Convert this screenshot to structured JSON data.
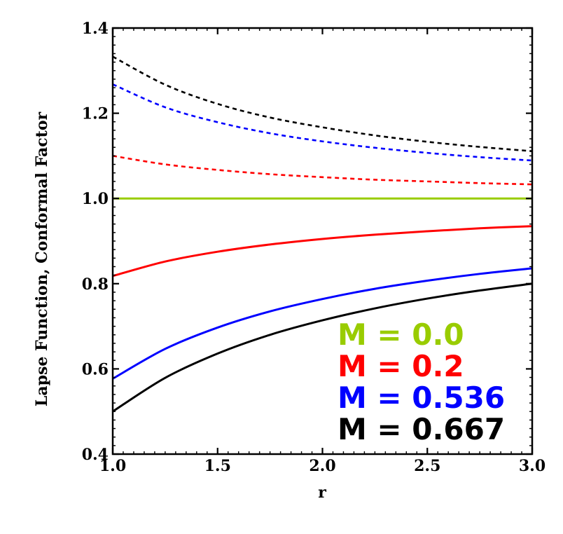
{
  "chart_data": {
    "type": "line",
    "title": "",
    "xlabel": "r",
    "ylabel": "Lapse Function, Conformal Factor",
    "xlim": [
      1.0,
      3.0
    ],
    "ylim": [
      0.4,
      1.4
    ],
    "x_ticks": [
      "1.0",
      "1.5",
      "2.0",
      "2.5",
      "3.0"
    ],
    "y_ticks": [
      "0.4",
      "0.6",
      "0.8",
      "1.0",
      "1.2",
      "1.4"
    ],
    "x": [
      1.0,
      1.25,
      1.5,
      1.75,
      2.0,
      2.25,
      2.5,
      2.75,
      3.0
    ],
    "series": [
      {
        "name": "Conformal Factor, M = 0.667",
        "color": "#000000",
        "style": "dashed",
        "values": [
          1.333,
          1.267,
          1.222,
          1.19,
          1.167,
          1.148,
          1.133,
          1.121,
          1.111
        ]
      },
      {
        "name": "Conformal Factor, M = 0.536",
        "color": "#0000ff",
        "style": "dashed",
        "values": [
          1.268,
          1.214,
          1.179,
          1.153,
          1.134,
          1.119,
          1.107,
          1.097,
          1.089
        ]
      },
      {
        "name": "Conformal Factor, M = 0.2",
        "color": "#ff0000",
        "style": "dashed",
        "values": [
          1.1,
          1.08,
          1.067,
          1.057,
          1.05,
          1.044,
          1.04,
          1.036,
          1.033
        ]
      },
      {
        "name": "M = 0.0",
        "color": "#99cc00",
        "style": "solid",
        "values": [
          1.0,
          1.0,
          1.0,
          1.0,
          1.0,
          1.0,
          1.0,
          1.0,
          1.0
        ]
      },
      {
        "name": "Lapse Function, M = 0.2",
        "color": "#ff0000",
        "style": "solid",
        "values": [
          0.818,
          0.852,
          0.875,
          0.892,
          0.905,
          0.915,
          0.923,
          0.93,
          0.935
        ]
      },
      {
        "name": "Lapse Function, M = 0.536",
        "color": "#0000ff",
        "style": "solid",
        "values": [
          0.577,
          0.647,
          0.697,
          0.735,
          0.764,
          0.788,
          0.807,
          0.823,
          0.836
        ]
      },
      {
        "name": "Lapse Function, M = 0.667",
        "color": "#000000",
        "style": "solid",
        "values": [
          0.5,
          0.579,
          0.636,
          0.68,
          0.714,
          0.742,
          0.765,
          0.784,
          0.8
        ]
      }
    ],
    "legend": {
      "placement": "bottom-right",
      "entries": [
        {
          "label": "M = 0.0",
          "color": "#99cc00"
        },
        {
          "label": "M = 0.2",
          "color": "#ff0000"
        },
        {
          "label": "M = 0.536",
          "color": "#0000ff"
        },
        {
          "label": "M = 0.667",
          "color": "#000000"
        }
      ]
    },
    "grid": false
  }
}
